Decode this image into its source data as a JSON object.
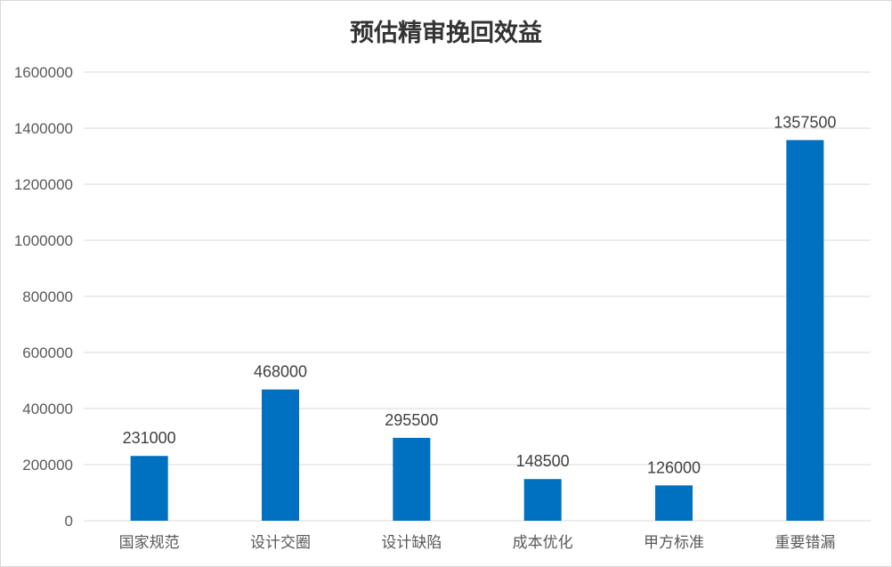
{
  "chart_data": {
    "type": "bar",
    "title": "预估精审挽回效益",
    "categories": [
      "国家规范",
      "设计交圈",
      "设计缺陷",
      "成本优化",
      "甲方标准",
      "重要错漏"
    ],
    "values": [
      231000,
      468000,
      295500,
      148500,
      126000,
      1357500
    ],
    "data_labels": [
      "231000",
      "468000",
      "295500",
      "148500",
      "126000",
      "1357500"
    ],
    "yticks": [
      "0",
      "200000",
      "400000",
      "600000",
      "800000",
      "1000000",
      "1200000",
      "1400000",
      "1600000"
    ],
    "ylim": [
      0,
      1600000
    ],
    "grid": true,
    "bar_color": "#0070c0",
    "grid_color": "#d9d9d9"
  }
}
